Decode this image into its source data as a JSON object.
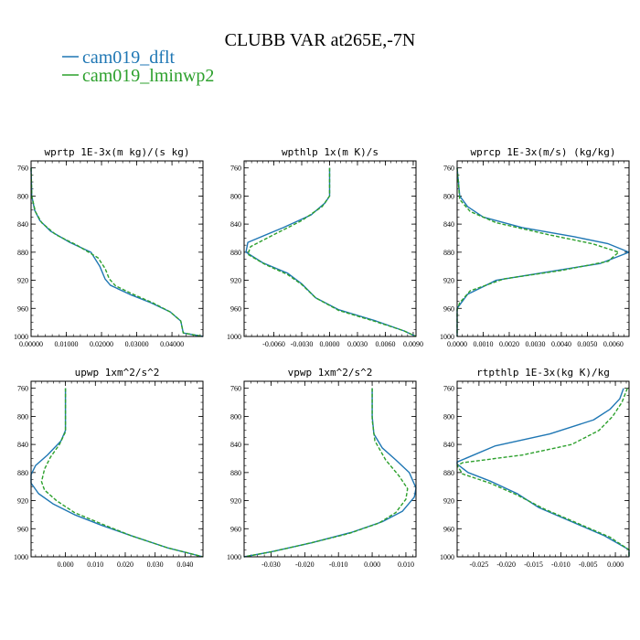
{
  "figure": {
    "title": "CLUBB VAR at265E,-7N",
    "legend": [
      {
        "label": "cam019_dflt",
        "color": "#1f77b4"
      },
      {
        "label": "cam019_lminwp2",
        "color": "#2ca02c"
      }
    ]
  },
  "chart_data": [
    {
      "type": "line",
      "title": "wprtp  1E-3x(m kg)/(s kg)",
      "xlim": [
        0,
        0.0488
      ],
      "ylim": [
        1000,
        750
      ],
      "y_ticks": [
        760,
        800,
        840,
        880,
        920,
        960,
        1000
      ],
      "x_ticks": [
        0,
        0.01,
        0.02,
        0.03,
        0.04
      ],
      "x_tick_labels": [
        "0.00000",
        "0.01000",
        "0.02000",
        "0.03000",
        "0.04000"
      ],
      "series": [
        {
          "name": "cam019_dflt",
          "style": "solid",
          "points": [
            [
              0,
              760
            ],
            [
              0.0002,
              800
            ],
            [
              0.001,
              820
            ],
            [
              0.0025,
              835
            ],
            [
              0.0055,
              850
            ],
            [
              0.011,
              866
            ],
            [
              0.017,
              880
            ],
            [
              0.0195,
              900
            ],
            [
              0.021,
              918
            ],
            [
              0.0225,
              927
            ],
            [
              0.028,
              940
            ],
            [
              0.034,
              952
            ],
            [
              0.0395,
              965
            ],
            [
              0.0425,
              978
            ],
            [
              0.0432,
              995
            ],
            [
              0.0488,
              1000
            ]
          ]
        },
        {
          "name": "cam019_lminwp2",
          "style": "dashed",
          "points": [
            [
              0,
              760
            ],
            [
              0.0002,
              800
            ],
            [
              0.0012,
              822
            ],
            [
              0.003,
              838
            ],
            [
              0.007,
              855
            ],
            [
              0.013,
              870
            ],
            [
              0.019,
              888
            ],
            [
              0.021,
              903
            ],
            [
              0.0222,
              918
            ],
            [
              0.024,
              928
            ],
            [
              0.029,
              940
            ],
            [
              0.0345,
              952
            ],
            [
              0.0395,
              965
            ],
            [
              0.0425,
              978
            ],
            [
              0.0432,
              995
            ],
            [
              0.0488,
              1000
            ]
          ]
        }
      ]
    },
    {
      "type": "line",
      "title": "wpthlp  1x(m K)/s",
      "xlim": [
        -0.0092,
        0.0093
      ],
      "ylim": [
        1000,
        750
      ],
      "y_ticks": [
        760,
        800,
        840,
        880,
        920,
        960,
        1000
      ],
      "x_ticks": [
        -0.006,
        -0.003,
        0,
        0.003,
        0.006,
        0.009
      ],
      "x_tick_labels": [
        "-0.0060",
        "-0.0030",
        "0.0000",
        "0.0030",
        "0.0060",
        "0.0090"
      ],
      "series": [
        {
          "name": "cam019_dflt",
          "style": "solid",
          "points": [
            [
              0,
              760
            ],
            [
              0,
              800
            ],
            [
              -0.0005,
              810
            ],
            [
              -0.002,
              827
            ],
            [
              -0.005,
              845
            ],
            [
              -0.0088,
              866
            ],
            [
              -0.009,
              880
            ],
            [
              -0.0072,
              895
            ],
            [
              -0.0045,
              910
            ],
            [
              -0.003,
              925
            ],
            [
              -0.0015,
              945
            ],
            [
              0.001,
              962
            ],
            [
              0.005,
              978
            ],
            [
              0.008,
              992
            ],
            [
              0.0093,
              1000
            ]
          ]
        },
        {
          "name": "cam019_lminwp2",
          "style": "dashed",
          "points": [
            [
              0,
              760
            ],
            [
              0,
              800
            ],
            [
              -0.0008,
              815
            ],
            [
              -0.003,
              835
            ],
            [
              -0.006,
              855
            ],
            [
              -0.0085,
              872
            ],
            [
              -0.0088,
              883
            ],
            [
              -0.007,
              897
            ],
            [
              -0.0045,
              912
            ],
            [
              -0.003,
              926
            ],
            [
              -0.0015,
              945
            ],
            [
              0.001,
              963
            ],
            [
              0.005,
              979
            ],
            [
              0.008,
              992
            ],
            [
              0.0093,
              1000
            ]
          ]
        }
      ]
    },
    {
      "type": "line",
      "title": "wprcp  1E-3x(m/s) (kg/kg)",
      "xlim": [
        0,
        0.0066
      ],
      "ylim": [
        1000,
        750
      ],
      "y_ticks": [
        760,
        800,
        840,
        880,
        920,
        960,
        1000
      ],
      "x_ticks": [
        0,
        0.001,
        0.002,
        0.003,
        0.004,
        0.005,
        0.006
      ],
      "x_tick_labels": [
        "0.0000",
        "0.0010",
        "0.0020",
        "0.0030",
        "0.0040",
        "0.0050",
        "0.0060"
      ],
      "series": [
        {
          "name": "cam019_dflt",
          "style": "solid",
          "points": [
            [
              0,
              760
            ],
            [
              0.0001,
              800
            ],
            [
              0.0004,
              815
            ],
            [
              0.001,
              830
            ],
            [
              0.0025,
              845
            ],
            [
              0.0045,
              858
            ],
            [
              0.0058,
              868
            ],
            [
              0.0066,
              880
            ],
            [
              0.0055,
              896
            ],
            [
              0.0035,
              908
            ],
            [
              0.0015,
              920
            ],
            [
              0.0004,
              940
            ],
            [
              0.0001,
              955
            ],
            [
              0,
              960
            ],
            [
              0,
              1000
            ]
          ]
        },
        {
          "name": "cam019_lminwp2",
          "style": "dashed",
          "points": [
            [
              0,
              760
            ],
            [
              0.0001,
              805
            ],
            [
              0.0005,
              822
            ],
            [
              0.0015,
              838
            ],
            [
              0.0035,
              855
            ],
            [
              0.0052,
              868
            ],
            [
              0.0062,
              880
            ],
            [
              0.0058,
              893
            ],
            [
              0.004,
              906
            ],
            [
              0.0018,
              918
            ],
            [
              0.0005,
              935
            ],
            [
              0.0001,
              952
            ],
            [
              0,
              962
            ],
            [
              0,
              1000
            ]
          ]
        }
      ]
    },
    {
      "type": "line",
      "title": "upwp  1xm^2/s^2",
      "xlim": [
        -0.0115,
        0.046
      ],
      "ylim": [
        1000,
        750
      ],
      "y_ticks": [
        760,
        800,
        840,
        880,
        920,
        960,
        1000
      ],
      "x_ticks": [
        0,
        0.01,
        0.02,
        0.03,
        0.04
      ],
      "x_tick_labels": [
        "0.000",
        "0.010",
        "0.020",
        "0.030",
        "0.040"
      ],
      "series": [
        {
          "name": "cam019_dflt",
          "style": "solid",
          "points": [
            [
              0,
              760
            ],
            [
              0,
              820
            ],
            [
              -0.0015,
              835
            ],
            [
              -0.006,
              855
            ],
            [
              -0.01,
              870
            ],
            [
              -0.0115,
              883
            ],
            [
              -0.0115,
              895
            ],
            [
              -0.009,
              910
            ],
            [
              -0.004,
              925
            ],
            [
              0.003,
              940
            ],
            [
              0.012,
              955
            ],
            [
              0.022,
              970
            ],
            [
              0.034,
              987
            ],
            [
              0.046,
              1000
            ]
          ]
        },
        {
          "name": "cam019_lminwp2",
          "style": "dashed",
          "points": [
            [
              0,
              760
            ],
            [
              0,
              822
            ],
            [
              -0.002,
              840
            ],
            [
              -0.005,
              858
            ],
            [
              -0.007,
              875
            ],
            [
              -0.008,
              893
            ],
            [
              -0.007,
              905
            ],
            [
              -0.003,
              920
            ],
            [
              0.003,
              937
            ],
            [
              0.012,
              953
            ],
            [
              0.022,
              970
            ],
            [
              0.034,
              987
            ],
            [
              0.046,
              1000
            ]
          ]
        }
      ]
    },
    {
      "type": "line",
      "title": "vpwp  1xm^2/s^2",
      "xlim": [
        -0.038,
        0.013
      ],
      "ylim": [
        1000,
        750
      ],
      "y_ticks": [
        760,
        800,
        840,
        880,
        920,
        960,
        1000
      ],
      "x_ticks": [
        -0.03,
        -0.02,
        -0.01,
        0,
        0.01
      ],
      "x_tick_labels": [
        "-0.030",
        "-0.020",
        "-0.010",
        "0.000",
        "0.010"
      ],
      "series": [
        {
          "name": "cam019_dflt",
          "style": "solid",
          "points": [
            [
              0,
              760
            ],
            [
              0,
              800
            ],
            [
              0.0005,
              825
            ],
            [
              0.003,
              845
            ],
            [
              0.007,
              862
            ],
            [
              0.011,
              880
            ],
            [
              0.013,
              902
            ],
            [
              0.0125,
              915
            ],
            [
              0.009,
              935
            ],
            [
              0.003,
              950
            ],
            [
              -0.006,
              965
            ],
            [
              -0.018,
              980
            ],
            [
              -0.03,
              993
            ],
            [
              -0.038,
              1000
            ]
          ]
        },
        {
          "name": "cam019_lminwp2",
          "style": "dashed",
          "points": [
            [
              0,
              760
            ],
            [
              0,
              805
            ],
            [
              0.0008,
              835
            ],
            [
              0.004,
              862
            ],
            [
              0.008,
              885
            ],
            [
              0.0105,
              903
            ],
            [
              0.01,
              918
            ],
            [
              0.007,
              937
            ],
            [
              0.002,
              952
            ],
            [
              -0.007,
              967
            ],
            [
              -0.018,
              980
            ],
            [
              -0.03,
              993
            ],
            [
              -0.038,
              1000
            ]
          ]
        }
      ]
    },
    {
      "type": "line",
      "title": "rtpthlp  1E-3x(kg K)/kg",
      "xlim": [
        -0.029,
        0.0025
      ],
      "ylim": [
        1000,
        750
      ],
      "y_ticks": [
        760,
        800,
        840,
        880,
        920,
        960,
        1000
      ],
      "x_ticks": [
        -0.025,
        -0.02,
        -0.015,
        -0.01,
        -0.005,
        0
      ],
      "x_tick_labels": [
        "-0.025",
        "-0.020",
        "-0.015",
        "-0.010",
        "-0.005",
        "0.000"
      ],
      "series": [
        {
          "name": "cam019_dflt",
          "style": "solid",
          "points": [
            [
              0.0015,
              760
            ],
            [
              0.0008,
              775
            ],
            [
              -0.001,
              790
            ],
            [
              -0.004,
              805
            ],
            [
              -0.012,
              825
            ],
            [
              -0.022,
              842
            ],
            [
              -0.029,
              865
            ],
            [
              -0.029,
              868
            ],
            [
              -0.027,
              880
            ],
            [
              -0.023,
              892
            ],
            [
              -0.018,
              910
            ],
            [
              -0.014,
              930
            ],
            [
              -0.008,
              950
            ],
            [
              -0.002,
              970
            ],
            [
              0.0025,
              990
            ],
            [
              0.0025,
              1000
            ]
          ]
        },
        {
          "name": "cam019_lminwp2",
          "style": "dashed",
          "points": [
            [
              0.0022,
              760
            ],
            [
              0.0012,
              780
            ],
            [
              -0.0005,
              800
            ],
            [
              -0.003,
              820
            ],
            [
              -0.008,
              840
            ],
            [
              -0.017,
              855
            ],
            [
              -0.028,
              866
            ],
            [
              -0.029,
              870
            ],
            [
              -0.028,
              882
            ],
            [
              -0.023,
              895
            ],
            [
              -0.018,
              912
            ],
            [
              -0.013,
              932
            ],
            [
              -0.007,
              952
            ],
            [
              -0.001,
              972
            ],
            [
              0.0025,
              990
            ],
            [
              0.0025,
              1000
            ]
          ]
        }
      ]
    }
  ]
}
